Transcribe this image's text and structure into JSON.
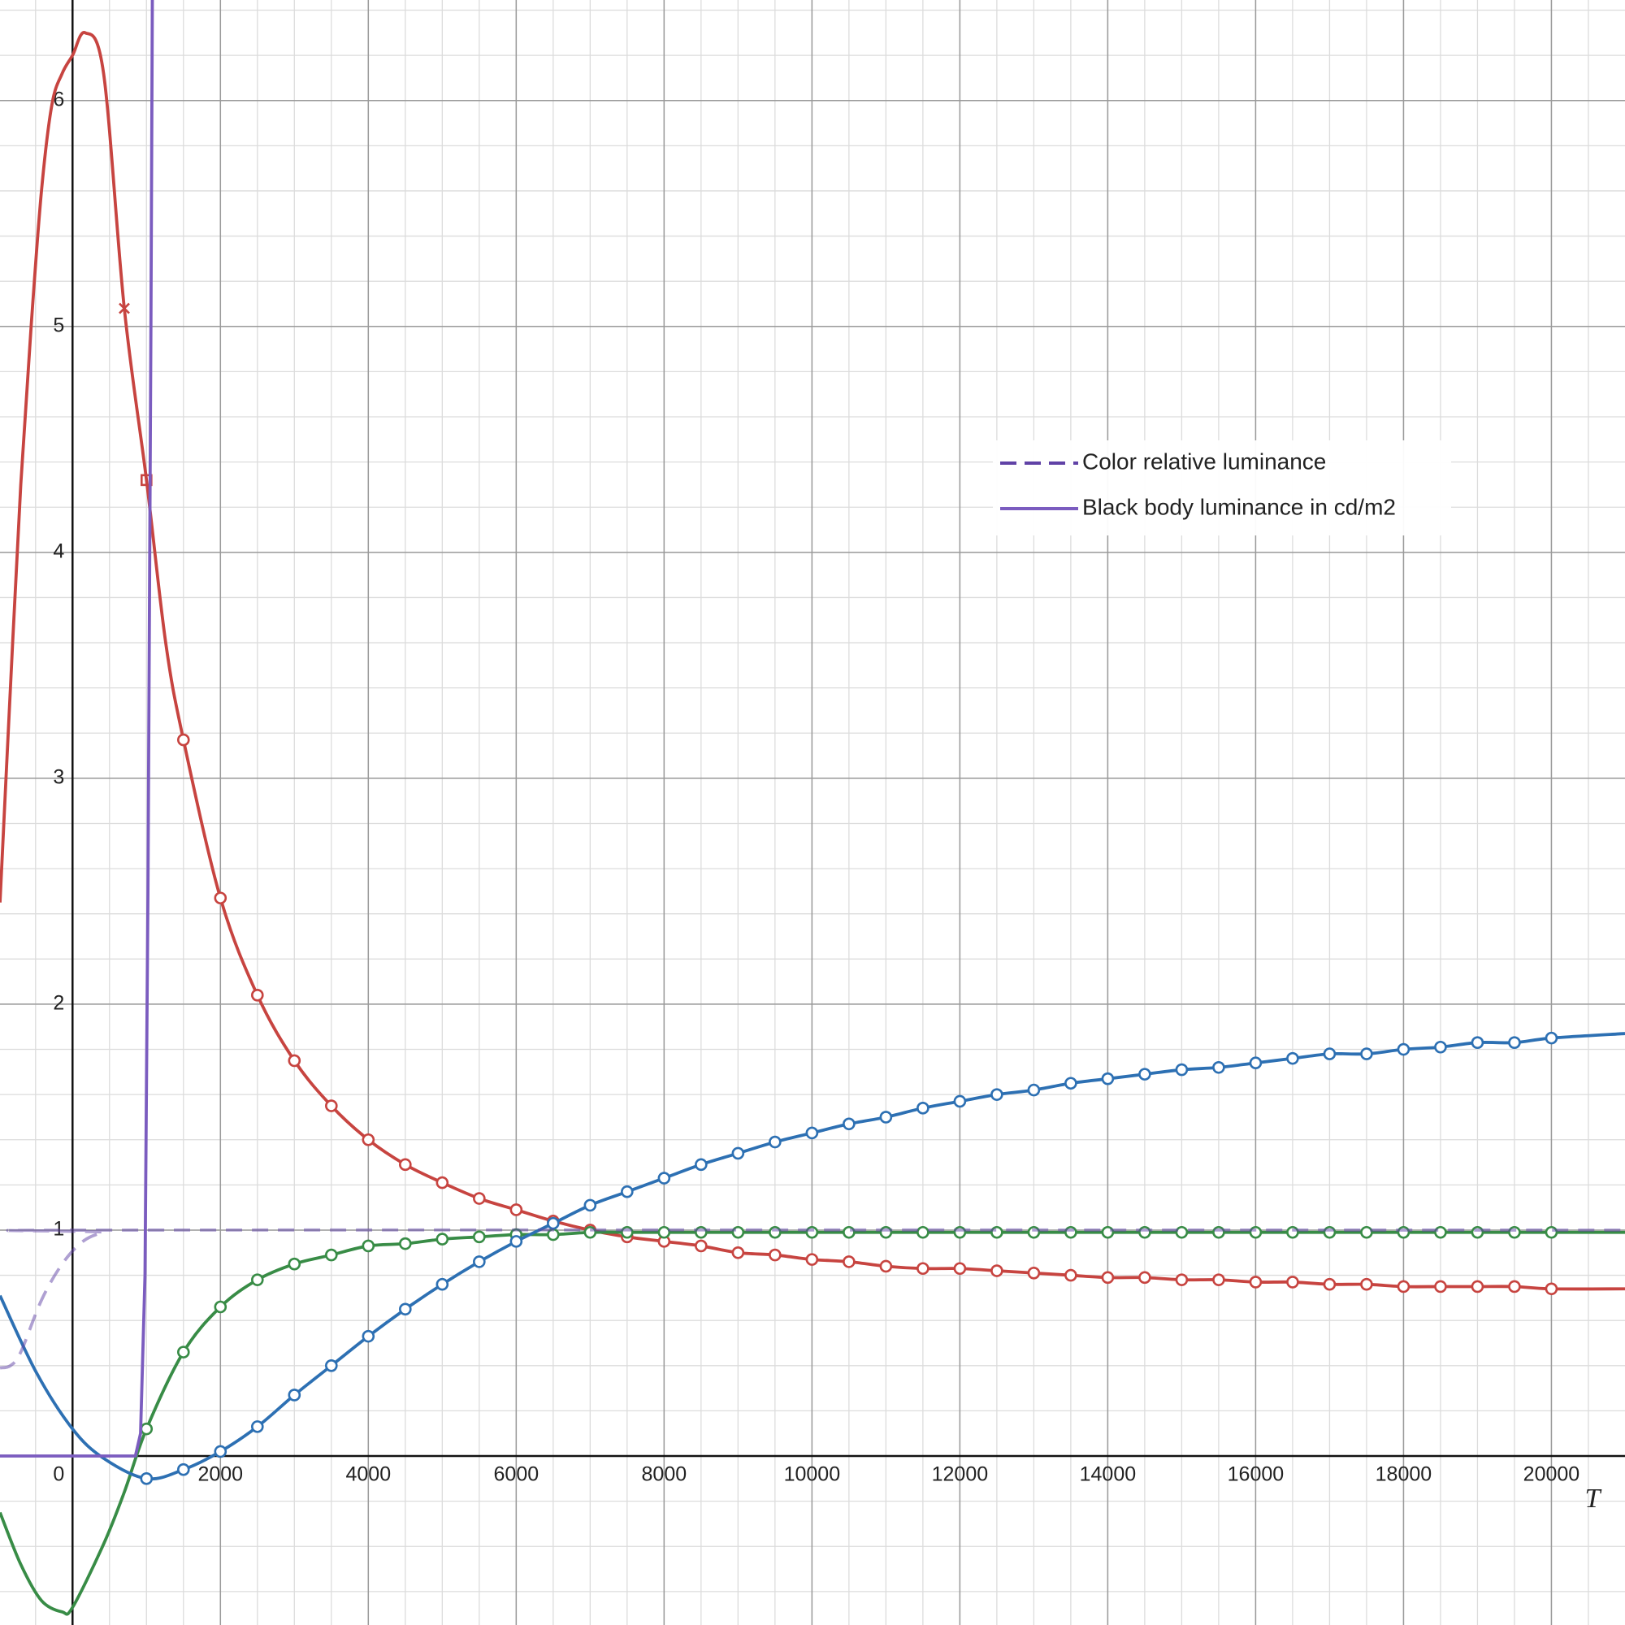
{
  "chart_data": {
    "type": "line",
    "xlabel": "T",
    "xlim": [
      -981,
      20995
    ],
    "ylim": [
      -0.748,
      6.445
    ],
    "xticks": [
      0,
      2000,
      4000,
      6000,
      8000,
      10000,
      12000,
      14000,
      16000,
      18000,
      20000
    ],
    "yticks": [
      1,
      2,
      3,
      4,
      5,
      6
    ],
    "grid": true,
    "x_minor_divisions": 4,
    "y_minor_divisions": 5,
    "legend": "upper right",
    "series": [
      {
        "color": "#c74440",
        "smooth": true,
        "x": [
          -981,
          -840,
          -700,
          -560,
          -420,
          -280,
          -140,
          0,
          170,
          420,
          700,
          1000,
          1260,
          1500,
          2000,
          2500,
          3000,
          3500,
          4000,
          4500,
          5000,
          5500,
          6000,
          6500,
          7000,
          7500,
          8000,
          8500,
          9000,
          9500,
          10000,
          10500,
          11000,
          11500,
          12000,
          12500,
          13000,
          13500,
          14000,
          14500,
          15000,
          15500,
          16000,
          16500,
          17000,
          17500,
          18000,
          18500,
          19000,
          19500,
          20000,
          20995
        ],
        "values": [
          2.45,
          3.4,
          4.3,
          5.0,
          5.6,
          5.98,
          6.12,
          6.2,
          6.3,
          6.12,
          5.08,
          4.32,
          3.6,
          3.17,
          2.47,
          2.04,
          1.75,
          1.55,
          1.4,
          1.29,
          1.21,
          1.14,
          1.09,
          1.04,
          1.0,
          0.97,
          0.95,
          0.93,
          0.9,
          0.89,
          0.87,
          0.86,
          0.84,
          0.83,
          0.83,
          0.82,
          0.81,
          0.8,
          0.79,
          0.79,
          0.78,
          0.78,
          0.77,
          0.77,
          0.76,
          0.76,
          0.75,
          0.75,
          0.75,
          0.75,
          0.74,
          0.74
        ],
        "markers": [
          null,
          null,
          null,
          null,
          null,
          null,
          null,
          null,
          null,
          null,
          "cross",
          "square",
          null,
          "circle",
          "circle",
          "circle",
          "circle",
          "circle",
          "circle",
          "circle",
          "circle",
          "circle",
          "circle",
          "circle",
          "circle",
          "circle",
          "circle",
          "circle",
          "circle",
          "circle",
          "circle",
          "circle",
          "circle",
          "circle",
          "circle",
          "circle",
          "circle",
          "circle",
          "circle",
          "circle",
          "circle",
          "circle",
          "circle",
          "circle",
          "circle",
          "circle",
          "circle",
          "circle",
          "circle",
          "circle",
          "circle",
          null
        ]
      },
      {
        "color": "#388c46",
        "smooth": true,
        "x": [
          -981,
          -700,
          -420,
          -140,
          0,
          420,
          700,
          1000,
          1500,
          2000,
          2500,
          3000,
          3500,
          4000,
          4500,
          5000,
          5500,
          6000,
          6500,
          7000,
          7500,
          8000,
          8500,
          9000,
          9500,
          10000,
          10500,
          11000,
          11500,
          12000,
          12500,
          13000,
          13500,
          14000,
          14500,
          15000,
          15500,
          16000,
          16500,
          17000,
          17500,
          18000,
          18500,
          19000,
          19500,
          20000,
          20995
        ],
        "values": [
          -0.25,
          -0.48,
          -0.64,
          -0.69,
          -0.67,
          -0.39,
          -0.16,
          0.12,
          0.46,
          0.66,
          0.78,
          0.85,
          0.89,
          0.93,
          0.94,
          0.96,
          0.97,
          0.98,
          0.98,
          0.99,
          0.99,
          0.99,
          0.99,
          0.99,
          0.99,
          0.99,
          0.99,
          0.99,
          0.99,
          0.99,
          0.99,
          0.99,
          0.99,
          0.99,
          0.99,
          0.99,
          0.99,
          0.99,
          0.99,
          0.99,
          0.99,
          0.99,
          0.99,
          0.99,
          0.99,
          0.99,
          0.99
        ],
        "markers": [
          null,
          null,
          null,
          null,
          null,
          null,
          null,
          "circle",
          "circle",
          "circle",
          "circle",
          "circle",
          "circle",
          "circle",
          "circle",
          "circle",
          "circle",
          "circle",
          "circle",
          "circle",
          "circle",
          "circle",
          "circle",
          "circle",
          "circle",
          "circle",
          "circle",
          "circle",
          "circle",
          "circle",
          "circle",
          "circle",
          "circle",
          "circle",
          "circle",
          "circle",
          "circle",
          "circle",
          "circle",
          "circle",
          "circle",
          "circle",
          "circle",
          "circle",
          "circle",
          "circle",
          null
        ]
      },
      {
        "color": "#2d70b3",
        "smooth": true,
        "x": [
          -981,
          -490,
          0,
          420,
          1000,
          1500,
          2000,
          2500,
          3000,
          3500,
          4000,
          4500,
          5000,
          5500,
          6000,
          6500,
          7000,
          7500,
          8000,
          8500,
          9000,
          9500,
          10000,
          10500,
          11000,
          11500,
          12000,
          12500,
          13000,
          13500,
          14000,
          14500,
          15000,
          15500,
          16000,
          16500,
          17000,
          17500,
          18000,
          18500,
          19000,
          19500,
          20000,
          20995
        ],
        "values": [
          0.71,
          0.37,
          0.12,
          -0.01,
          -0.1,
          -0.06,
          0.02,
          0.13,
          0.27,
          0.4,
          0.53,
          0.65,
          0.76,
          0.86,
          0.95,
          1.03,
          1.11,
          1.17,
          1.23,
          1.29,
          1.34,
          1.39,
          1.43,
          1.47,
          1.5,
          1.54,
          1.57,
          1.6,
          1.62,
          1.65,
          1.67,
          1.69,
          1.71,
          1.72,
          1.74,
          1.76,
          1.78,
          1.78,
          1.8,
          1.81,
          1.83,
          1.83,
          1.85,
          1.87
        ],
        "markers": [
          null,
          null,
          null,
          null,
          "circle",
          "circle",
          "circle",
          "circle",
          "circle",
          "circle",
          "circle",
          "circle",
          "circle",
          "circle",
          "circle",
          "circle",
          "circle",
          "circle",
          "circle",
          "circle",
          "circle",
          "circle",
          "circle",
          "circle",
          "circle",
          "circle",
          "circle",
          "circle",
          "circle",
          "circle",
          "circle",
          "circle",
          "circle",
          "circle",
          "circle",
          "circle",
          "circle",
          "circle",
          "circle",
          "circle",
          "circle",
          "circle",
          "circle",
          null
        ]
      },
      {
        "name": "Color relative luminance",
        "color": "#6042a6",
        "dash": true,
        "opacity": 0.5,
        "smooth": true,
        "x": [
          -981,
          -840,
          -700,
          -420,
          -140,
          140,
          420,
          700,
          20995
        ],
        "values": [
          0.39,
          0.4,
          0.46,
          0.69,
          0.85,
          0.95,
          0.99,
          1.0,
          1.0
        ]
      },
      {
        "name": "Black body luminance in cd/m2",
        "color": "#7b5cbf",
        "smooth": false,
        "x": [
          -981,
          850,
          920,
          980,
          1020,
          1060,
          1100
        ],
        "values": [
          0,
          0,
          0.1,
          0.8,
          2.5,
          5,
          8
        ]
      }
    ]
  }
}
